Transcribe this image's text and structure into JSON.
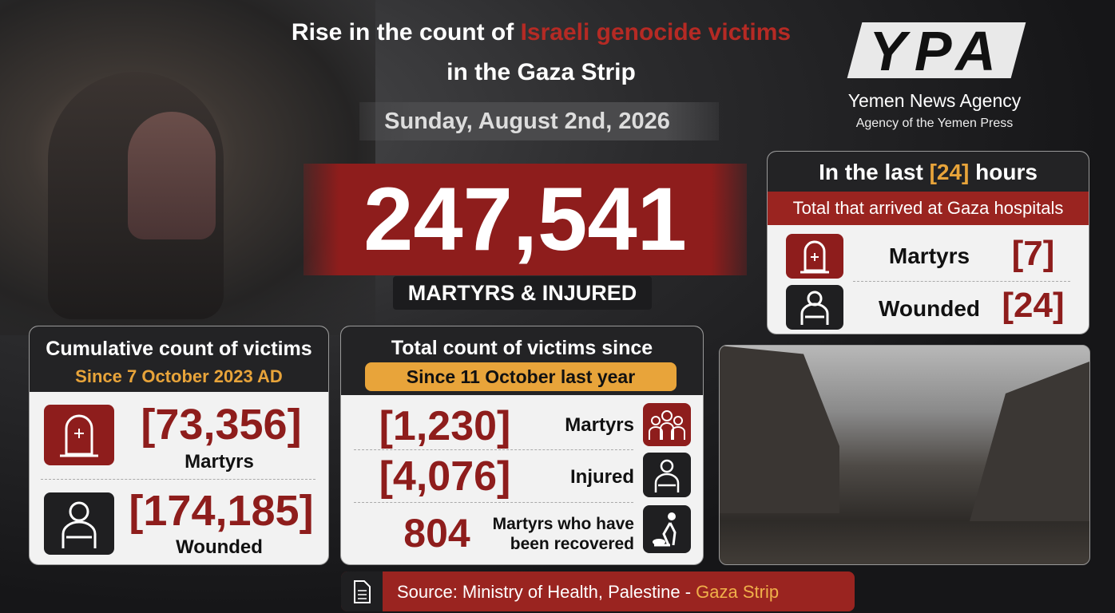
{
  "header": {
    "title_line1_prefix": "Rise in the count of",
    "title_line1_highlight": "Israeli genocide victims",
    "title_line2": "in the Gaza Strip",
    "date": "Sunday, August 2nd, 2026"
  },
  "headline": {
    "total": "247,541",
    "label": "MARTYRS & INJURED"
  },
  "logo": {
    "mark": "YPA",
    "name": "Yemen News Agency",
    "tagline": "Agency of the Yemen Press"
  },
  "last_24_hours": {
    "title_prefix": "In the last",
    "title_hours": "[24]",
    "title_suffix": "hours",
    "subtitle": "Total that arrived at Gaza hospitals",
    "rows": [
      {
        "label": "Martyrs",
        "value": "[7]"
      },
      {
        "label": "Wounded",
        "value": "[24]"
      }
    ]
  },
  "cumulative": {
    "title": "Cumulative count of victims",
    "subtitle": "Since 7 October 2023 AD",
    "rows": [
      {
        "value": "[73,356]",
        "label": "Martyrs"
      },
      {
        "value": "[174,185]",
        "label": "Wounded"
      }
    ]
  },
  "since_last_year": {
    "title": "Total count of victims since",
    "subtitle": "Since 11 October last year",
    "rows": [
      {
        "value": "[1,230]",
        "label": [
          "Martyrs"
        ]
      },
      {
        "value": "[4,076]",
        "label": [
          "Injured"
        ]
      },
      {
        "value": "804",
        "label": [
          "Martyrs who have",
          "been recovered"
        ]
      }
    ]
  },
  "source": {
    "prefix": "Source: Ministry of Health, Palestine -",
    "highlight": "Gaza Strip"
  }
}
